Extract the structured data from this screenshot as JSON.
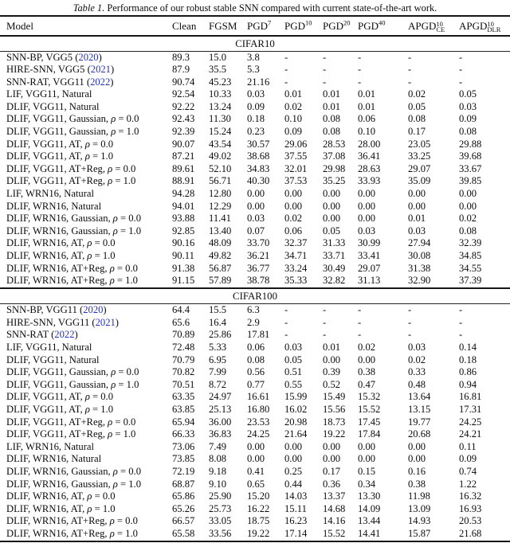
{
  "caption": {
    "label": "Table 1.",
    "text": "Performance of our robust stable SNN compared with current state-of-the-art work."
  },
  "colors": {
    "citation_blue": "#2533b8",
    "text": "#0c0c0c",
    "background": "#ffffff"
  },
  "columns": [
    {
      "key": "model",
      "label": "Model"
    },
    {
      "key": "clean",
      "label": "Clean"
    },
    {
      "key": "fgsm",
      "label": "FGSM"
    },
    {
      "key": "pgd7",
      "label": "PGD",
      "sup": "7"
    },
    {
      "key": "pgd10",
      "label": "PGD",
      "sup": "10"
    },
    {
      "key": "pgd20",
      "label": "PGD",
      "sup": "20"
    },
    {
      "key": "pgd40",
      "label": "PGD",
      "sup": "40"
    },
    {
      "key": "apgd10-ce",
      "label": "APGD",
      "sup": "10",
      "sub": "CE"
    },
    {
      "key": "apgd10-dlr",
      "label": "APGD",
      "sup": "10",
      "sub": "DLR"
    }
  ],
  "sections": [
    {
      "title": "CIFAR10",
      "rows": [
        {
          "model": "SNN-BP, VGG5",
          "year": "2020",
          "values": [
            "89.3",
            "15.0",
            "3.8",
            "-",
            "-",
            "-",
            "-",
            "-"
          ]
        },
        {
          "model": "HIRE-SNN, VGG5",
          "year": "2021",
          "values": [
            "87.9",
            "35.5",
            "5.3",
            "-",
            "-",
            "-",
            "-",
            "-"
          ]
        },
        {
          "model": "SNN-RAT, VGG11",
          "year": "2022",
          "values": [
            "90.74",
            "45.23",
            "21.16",
            "-",
            "-",
            "-",
            "-",
            "-"
          ]
        },
        {
          "model": "LIF, VGG11, Natural",
          "values": [
            "92.54",
            "10.33",
            "0.03",
            "0.01",
            "0.01",
            "0.01",
            "0.02",
            "0.05"
          ]
        },
        {
          "model": "DLIF, VGG11, Natural",
          "values": [
            "92.22",
            "13.24",
            "0.09",
            "0.02",
            "0.01",
            "0.01",
            "0.05",
            "0.03"
          ]
        },
        {
          "model": "DLIF, VGG11, Gaussian, ρ = 0.0",
          "values": [
            "92.43",
            "11.30",
            "0.18",
            "0.10",
            "0.08",
            "0.06",
            "0.08",
            "0.09"
          ]
        },
        {
          "model": "DLIF, VGG11, Gaussian, ρ = 1.0",
          "values": [
            "92.39",
            "15.24",
            "0.23",
            "0.09",
            "0.08",
            "0.10",
            "0.17",
            "0.08"
          ]
        },
        {
          "model": "DLIF, VGG11, AT, ρ = 0.0",
          "values": [
            "90.07",
            "43.54",
            "30.57",
            "29.06",
            "28.53",
            "28.00",
            "23.05",
            "29.88"
          ]
        },
        {
          "model": "DLIF, VGG11, AT, ρ = 1.0",
          "values": [
            "87.21",
            "49.02",
            "38.68",
            "37.55",
            "37.08",
            "36.41",
            "33.25",
            "39.68"
          ]
        },
        {
          "model": "DLIF, VGG11, AT+Reg, ρ = 0.0",
          "values": [
            "89.61",
            "52.10",
            "34.83",
            "32.01",
            "29.98",
            "28.63",
            "29.07",
            "33.67"
          ]
        },
        {
          "model": "DLIF, VGG11, AT+Reg, ρ = 1.0",
          "values": [
            "88.91",
            "56.71",
            "40.30",
            "37.53",
            "35.25",
            "33.93",
            "35.09",
            "39.85"
          ]
        },
        {
          "model": "LIF, WRN16, Natural",
          "values": [
            "94.28",
            "12.80",
            "0.00",
            "0.00",
            "0.00",
            "0.00",
            "0.00",
            "0.00"
          ]
        },
        {
          "model": "DLIF, WRN16, Natural",
          "values": [
            "94.01",
            "12.29",
            "0.00",
            "0.00",
            "0.00",
            "0.00",
            "0.00",
            "0.00"
          ]
        },
        {
          "model": "DLIF, WRN16, Gaussian, ρ = 0.0",
          "values": [
            "93.88",
            "11.41",
            "0.03",
            "0.02",
            "0.00",
            "0.00",
            "0.01",
            "0.02"
          ]
        },
        {
          "model": "DLIF, WRN16, Gaussian, ρ = 1.0",
          "values": [
            "92.85",
            "13.40",
            "0.07",
            "0.06",
            "0.05",
            "0.03",
            "0.03",
            "0.08"
          ]
        },
        {
          "model": "DLIF, WRN16, AT, ρ = 0.0",
          "values": [
            "90.16",
            "48.09",
            "33.70",
            "32.37",
            "31.33",
            "30.99",
            "27.94",
            "32.39"
          ]
        },
        {
          "model": "DLIF, WRN16, AT, ρ = 1.0",
          "values": [
            "90.11",
            "49.82",
            "36.21",
            "34.71",
            "33.71",
            "33.41",
            "30.08",
            "34.85"
          ]
        },
        {
          "model": "DLIF, WRN16, AT+Reg, ρ = 0.0",
          "values": [
            "91.38",
            "56.87",
            "36.77",
            "33.24",
            "30.49",
            "29.07",
            "31.38",
            "34.55"
          ]
        },
        {
          "model": "DLIF, WRN16, AT+Reg, ρ = 1.0",
          "values": [
            "91.15",
            "57.89",
            "38.78",
            "35.33",
            "32.82",
            "31.13",
            "32.90",
            "37.39"
          ]
        }
      ]
    },
    {
      "title": "CIFAR100",
      "rows": [
        {
          "model": "SNN-BP, VGG11",
          "year": "2020",
          "values": [
            "64.4",
            "15.5",
            "6.3",
            "-",
            "-",
            "-",
            "-",
            "-"
          ]
        },
        {
          "model": "HIRE-SNN, VGG11",
          "year": "2021",
          "values": [
            "65.6",
            "16.4",
            "2.9",
            "-",
            "-",
            "-",
            "-",
            "-"
          ]
        },
        {
          "model": "SNN-RAT",
          "year": "2022",
          "values": [
            "70.89",
            "25.86",
            "17.81",
            "-",
            "-",
            "-",
            "-",
            "-"
          ]
        },
        {
          "model": "LIF, VGG11, Natural",
          "values": [
            "72.48",
            "5.33",
            "0.06",
            "0.03",
            "0.01",
            "0.02",
            "0.03",
            "0.14"
          ]
        },
        {
          "model": "DLIF, VGG11, Natural",
          "values": [
            "70.79",
            "6.95",
            "0.08",
            "0.05",
            "0.00",
            "0.00",
            "0.02",
            "0.18"
          ]
        },
        {
          "model": "DLIF, VGG11, Gaussian, ρ = 0.0",
          "values": [
            "70.82",
            "7.99",
            "0.56",
            "0.51",
            "0.39",
            "0.38",
            "0.33",
            "0.86"
          ]
        },
        {
          "model": "DLIF, VGG11, Gaussian, ρ = 1.0",
          "values": [
            "70.51",
            "8.72",
            "0.77",
            "0.55",
            "0.52",
            "0.47",
            "0.48",
            "0.94"
          ]
        },
        {
          "model": "DLIF, VGG11, AT, ρ = 0.0",
          "values": [
            "63.35",
            "24.97",
            "16.61",
            "15.99",
            "15.49",
            "15.32",
            "13.64",
            "16.81"
          ]
        },
        {
          "model": "DLIF, VGG11, AT, ρ = 1.0",
          "values": [
            "63.85",
            "25.13",
            "16.80",
            "16.02",
            "15.56",
            "15.52",
            "13.15",
            "17.31"
          ]
        },
        {
          "model": "DLIF, VGG11, AT+Reg, ρ = 0.0",
          "values": [
            "65.94",
            "36.00",
            "23.53",
            "20.98",
            "18.73",
            "17.45",
            "19.77",
            "24.25"
          ]
        },
        {
          "model": "DLIF, VGG11, AT+Reg, ρ = 1.0",
          "values": [
            "66.33",
            "36.83",
            "24.25",
            "21.64",
            "19.22",
            "17.84",
            "20.68",
            "24.21"
          ]
        },
        {
          "model": "LIF, WRN16, Natural",
          "values": [
            "73.06",
            "7.49",
            "0.00",
            "0.00",
            "0.00",
            "0.00",
            "0.00",
            "0.11"
          ]
        },
        {
          "model": "DLIF, WRN16, Natural",
          "values": [
            "73.85",
            "8.08",
            "0.00",
            "0.00",
            "0.00",
            "0.00",
            "0.00",
            "0.09"
          ]
        },
        {
          "model": "DLIF, WRN16, Gaussian, ρ = 0.0",
          "values": [
            "72.19",
            "9.18",
            "0.41",
            "0.25",
            "0.17",
            "0.15",
            "0.16",
            "0.74"
          ]
        },
        {
          "model": "DLIF, WRN16, Gaussian, ρ = 1.0",
          "values": [
            "68.87",
            "9.10",
            "0.65",
            "0.44",
            "0.36",
            "0.34",
            "0.38",
            "1.22"
          ]
        },
        {
          "model": "DLIF, WRN16, AT, ρ = 0.0",
          "values": [
            "65.86",
            "25.90",
            "15.20",
            "14.03",
            "13.37",
            "13.30",
            "11.98",
            "16.32"
          ]
        },
        {
          "model": "DLIF, WRN16, AT, ρ = 1.0",
          "values": [
            "65.26",
            "25.73",
            "16.22",
            "15.11",
            "14.68",
            "14.09",
            "13.09",
            "16.93"
          ]
        },
        {
          "model": "DLIF, WRN16, AT+Reg, ρ = 0.0",
          "values": [
            "66.57",
            "33.05",
            "18.75",
            "16.23",
            "14.16",
            "13.44",
            "14.93",
            "20.53"
          ]
        },
        {
          "model": "DLIF, WRN16, AT+Reg, ρ = 1.0",
          "values": [
            "65.58",
            "33.56",
            "19.22",
            "17.14",
            "15.52",
            "14.41",
            "15.87",
            "21.68"
          ]
        }
      ]
    }
  ]
}
